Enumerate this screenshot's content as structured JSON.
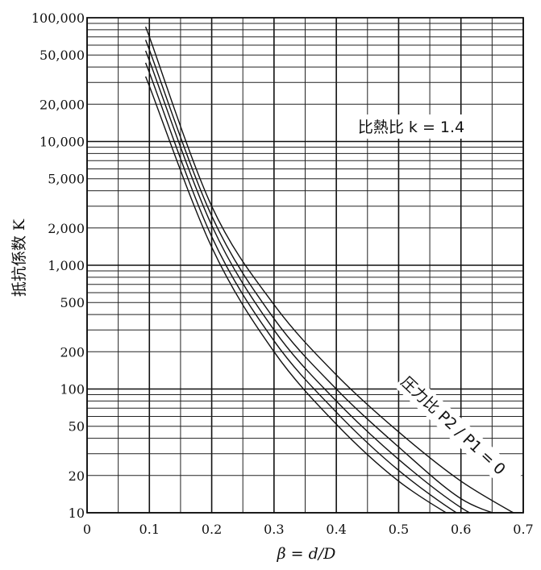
{
  "chart_data": {
    "type": "line",
    "title": "",
    "annotation_top": "比熱比 k = 1.4",
    "annotation_curves": "圧力比 P2 / P1 = 0",
    "xlabel": "β = d/D",
    "ylabel": "抵抗係数 K",
    "xlim": [
      0,
      0.7
    ],
    "ylim": [
      10,
      100000
    ],
    "y_scale": "log",
    "grid": true,
    "x_ticks": [
      {
        "v": 0,
        "label": "0"
      },
      {
        "v": 0.1,
        "label": "0.1"
      },
      {
        "v": 0.2,
        "label": "0.2"
      },
      {
        "v": 0.3,
        "label": "0.3"
      },
      {
        "v": 0.4,
        "label": "0.4"
      },
      {
        "v": 0.5,
        "label": "0.5"
      },
      {
        "v": 0.6,
        "label": "0.6"
      },
      {
        "v": 0.7,
        "label": "0.7"
      }
    ],
    "y_ticks": [
      {
        "v": 100000,
        "label": "100,000"
      },
      {
        "v": 50000,
        "label": "50,000"
      },
      {
        "v": 20000,
        "label": "20,000"
      },
      {
        "v": 10000,
        "label": "10,000"
      },
      {
        "v": 5000,
        "label": "5,000"
      },
      {
        "v": 2000,
        "label": "2,000"
      },
      {
        "v": 1000,
        "label": "1,000"
      },
      {
        "v": 500,
        "label": "500"
      },
      {
        "v": 200,
        "label": "200"
      },
      {
        "v": 100,
        "label": "100"
      },
      {
        "v": 50,
        "label": "50"
      },
      {
        "v": 20,
        "label": "20"
      },
      {
        "v": 10,
        "label": "10"
      }
    ],
    "series": [
      {
        "label": "0",
        "x": [
          0.1,
          0.2,
          0.3,
          0.4,
          0.5,
          0.6,
          0.7
        ],
        "y": [
          70000,
          3000,
          480,
          130,
          45,
          18,
          9
        ]
      },
      {
        "label": "",
        "x": [
          0.1,
          0.2,
          0.3,
          0.4,
          0.5,
          0.6,
          0.68
        ],
        "y": [
          55000,
          2500,
          370,
          100,
          34,
          13,
          9
        ]
      },
      {
        "label": "",
        "x": [
          0.1,
          0.2,
          0.3,
          0.4,
          0.5,
          0.6,
          0.66
        ],
        "y": [
          45000,
          2100,
          300,
          80,
          27,
          11,
          8
        ]
      },
      {
        "label": "",
        "x": [
          0.1,
          0.2,
          0.3,
          0.4,
          0.5,
          0.6,
          0.645
        ],
        "y": [
          36000,
          1700,
          245,
          65,
          22,
          9.5,
          8
        ]
      },
      {
        "label": "",
        "x": [
          0.1,
          0.2,
          0.3,
          0.4,
          0.5,
          0.6,
          0.63
        ],
        "y": [
          28000,
          1400,
          200,
          52,
          18,
          8.5,
          7.5
        ]
      }
    ]
  }
}
